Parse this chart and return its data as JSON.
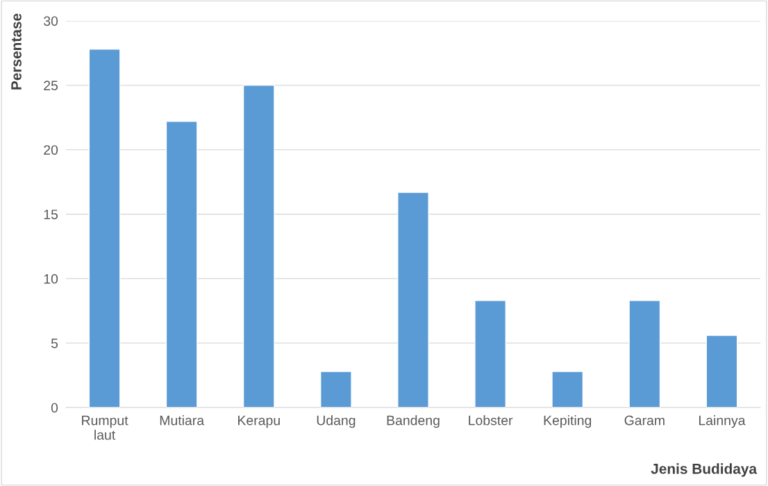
{
  "chart_data": {
    "type": "bar",
    "xlabel": "Jenis Budidaya",
    "ylabel": "Persentase",
    "categories": [
      "Rumput\nlaut",
      "Mutiara",
      "Kerapu",
      "Udang",
      "Bandeng",
      "Lobster",
      "Kepiting",
      "Garam",
      "Lainnya"
    ],
    "values": [
      27.8,
      22.2,
      25,
      2.8,
      16.7,
      8.3,
      2.8,
      8.3,
      5.6
    ],
    "color": "#5b9bd5",
    "ylim": [
      0,
      30
    ],
    "yticks": [
      0,
      5,
      10,
      15,
      20,
      25,
      30
    ],
    "grid": "y"
  }
}
